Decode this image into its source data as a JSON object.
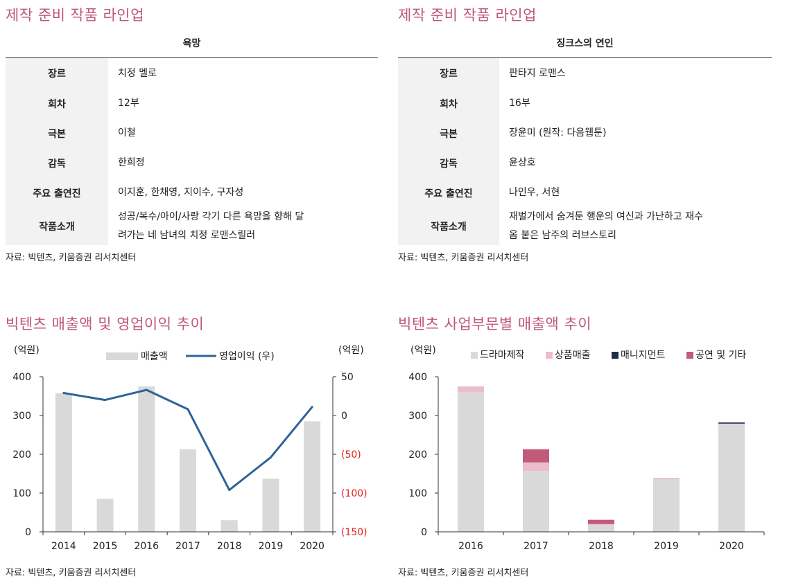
{
  "left_table": {
    "section_title": "제작 준비 작품 라인업",
    "title": "욕망",
    "rows": [
      {
        "key": "장르",
        "value": "치정 멜로"
      },
      {
        "key": "회차",
        "value": "12부"
      },
      {
        "key": "극본",
        "value": "이철"
      },
      {
        "key": "감독",
        "value": "한희정"
      },
      {
        "key": "주요 출연진",
        "value": "이지훈, 한채영, 지이수, 구자성"
      },
      {
        "key": "작품소개",
        "value_line1": "성공/복수/아이/사랑 각기 다른 욕망을 향해 달",
        "value_line2": "려가는 네 남녀의 치정 로맨스릴러"
      }
    ],
    "source": "자료: 빅텐츠, 키움증권 리서치센터"
  },
  "right_table": {
    "section_title": "제작 준비 작품 라인업",
    "title": "징크스의 연인",
    "rows": [
      {
        "key": "장르",
        "value": "판타지 로맨스"
      },
      {
        "key": "회차",
        "value": "16부"
      },
      {
        "key": "극본",
        "value": "장윤미 (원작: 다음웹툰)"
      },
      {
        "key": "감독",
        "value": "윤상호"
      },
      {
        "key": "주요 출연진",
        "value": "나인우, 서현"
      },
      {
        "key": "작품소개",
        "value_line1": "재벌가에서 숨겨둔 행운의 여신과 가난하고 재수",
        "value_line2": "옴 붙은 남주의 러브스토리"
      }
    ],
    "source": "자료: 빅텐츠, 키움증권 리서치센터"
  },
  "chart_data": [
    {
      "type": "bar",
      "title": "빅텐츠 매출액 및 영업이익 추이",
      "y_unit_left": "(억원)",
      "y_unit_right": "(억원)",
      "categories": [
        "2014",
        "2015",
        "2016",
        "2017",
        "2018",
        "2019",
        "2020"
      ],
      "series": [
        {
          "name": "매출액",
          "type": "bar",
          "axis": "left",
          "color": "#d9d9d9",
          "values": [
            357,
            85,
            375,
            213,
            30,
            137,
            285
          ]
        },
        {
          "name": "영업이익 (우)",
          "type": "line",
          "axis": "right",
          "color": "#2e6399",
          "values": [
            29,
            20,
            33,
            8,
            -96,
            -54,
            11
          ]
        }
      ],
      "ylim_left": [
        0,
        400
      ],
      "ylim_right": [
        -150,
        50
      ],
      "yticks_left": [
        "0",
        "100",
        "200",
        "300",
        "400"
      ],
      "yticks_right": [
        "(150)",
        "(100)",
        "(50)",
        "0",
        "50"
      ],
      "negative_tick_color": "#e02020",
      "legend_position": "top",
      "source": "자료: 빅텐츠, 키움증권 리서치센터"
    },
    {
      "type": "bar",
      "stacked": true,
      "title": "빅텐츠 사업부문별 매출액 추이",
      "y_unit_left": "(억원)",
      "categories": [
        "2016",
        "2017",
        "2018",
        "2019",
        "2020"
      ],
      "series": [
        {
          "name": "드라마제작",
          "color": "#d9d9d9",
          "values": [
            360,
            157,
            18,
            136,
            278
          ]
        },
        {
          "name": "상품매출",
          "color": "#ebbdcc",
          "values": [
            15,
            22,
            2,
            1,
            1
          ]
        },
        {
          "name": "매니지먼트",
          "color": "#1f2a4d",
          "values": [
            0,
            0,
            0,
            0,
            3
          ]
        },
        {
          "name": "공연 및 기타",
          "color": "#c25a7c",
          "values": [
            0,
            34,
            11,
            1,
            0
          ]
        }
      ],
      "ylim": [
        0,
        400
      ],
      "yticks": [
        "0",
        "100",
        "200",
        "300",
        "400"
      ],
      "legend_position": "top",
      "source": "자료: 빅텐츠, 키움증권 리서치센터"
    }
  ]
}
